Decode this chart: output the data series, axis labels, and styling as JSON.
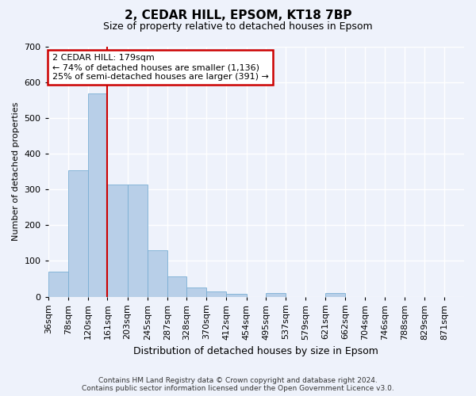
{
  "title": "2, CEDAR HILL, EPSOM, KT18 7BP",
  "subtitle": "Size of property relative to detached houses in Epsom",
  "xlabel": "Distribution of detached houses by size in Epsom",
  "ylabel": "Number of detached properties",
  "footer_line1": "Contains HM Land Registry data © Crown copyright and database right 2024.",
  "footer_line2": "Contains public sector information licensed under the Open Government Licence v3.0.",
  "bar_color": "#b8cfe8",
  "bar_edge_color": "#7aaed4",
  "annotation_box_color": "#ffffff",
  "annotation_box_edge": "#cc0000",
  "vertical_line_color": "#cc0000",
  "bin_edges": [
    36,
    78,
    120,
    161,
    203,
    245,
    287,
    328,
    370,
    412,
    454,
    495,
    537,
    579,
    621,
    662,
    704,
    746,
    788,
    829,
    871,
    913
  ],
  "categories": [
    "36sqm",
    "78sqm",
    "120sqm",
    "161sqm",
    "203sqm",
    "245sqm",
    "287sqm",
    "328sqm",
    "370sqm",
    "412sqm",
    "454sqm",
    "495sqm",
    "537sqm",
    "579sqm",
    "621sqm",
    "662sqm",
    "704sqm",
    "746sqm",
    "788sqm",
    "829sqm",
    "871sqm"
  ],
  "values": [
    70,
    355,
    570,
    315,
    315,
    130,
    57,
    25,
    14,
    7,
    0,
    10,
    0,
    0,
    10,
    0,
    0,
    0,
    0,
    0,
    0
  ],
  "ylim": [
    0,
    700
  ],
  "yticks": [
    0,
    100,
    200,
    300,
    400,
    500,
    600,
    700
  ],
  "annotation_text": "2 CEDAR HILL: 179sqm\n← 74% of detached houses are smaller (1,136)\n25% of semi-detached houses are larger (391) →",
  "vline_x": 161,
  "background_color": "#eef2fb",
  "grid_color": "#ffffff",
  "title_fontsize": 11,
  "subtitle_fontsize": 9,
  "ylabel_fontsize": 8,
  "xlabel_fontsize": 9,
  "tick_fontsize": 8,
  "annotation_fontsize": 8
}
